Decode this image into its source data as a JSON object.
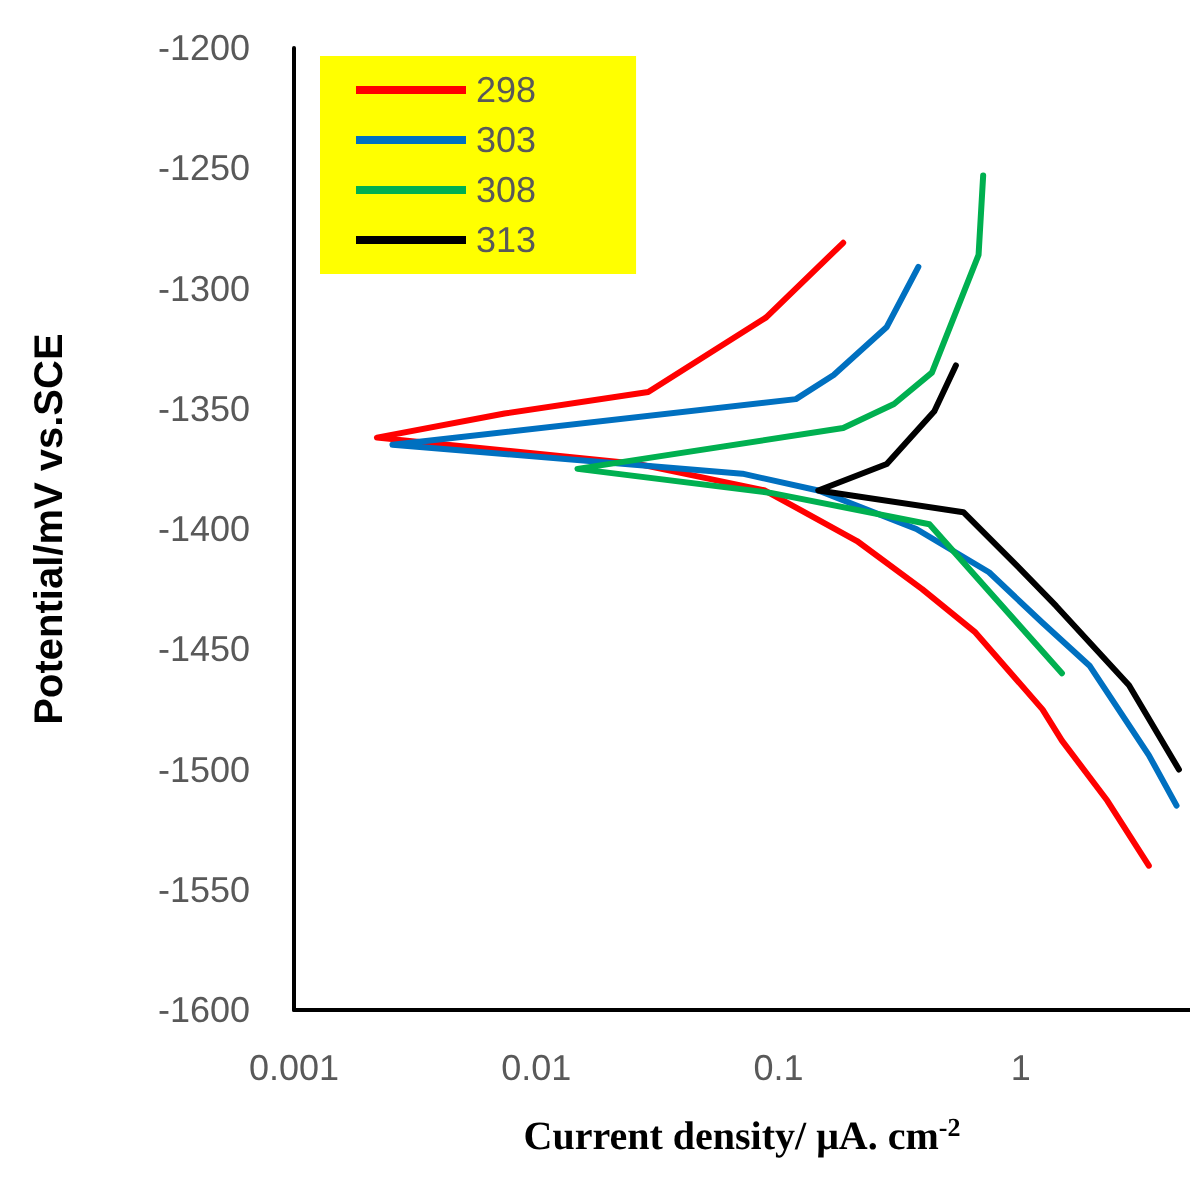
{
  "chart_data": {
    "type": "line",
    "xlabel": "Current density/ μA. cm$^{-2}$",
    "ylabel": "Potential/mV vs.SCE",
    "log": "x",
    "xlim": [
      0.001,
      5
    ],
    "xticks": [
      0.001,
      0.01,
      0.1,
      1
    ],
    "ylim": [
      -1600,
      -1200
    ],
    "yticks": [
      -1600,
      -1550,
      -1500,
      -1450,
      -1400,
      -1350,
      -1300,
      -1250,
      -1200
    ],
    "grid": false,
    "legend": "top left",
    "marker": "none",
    "line_style": "solid",
    "series": [
      {
        "name": "298",
        "color": "#ff0000",
        "x": [
          0.185,
          0.089,
          0.029,
          0.0074,
          0.0022,
          0.0265,
          0.088,
          0.211,
          0.392,
          0.65,
          1.23,
          1.48,
          2.28,
          3.38
        ],
        "values": [
          -1281,
          -1312,
          -1343,
          -1352,
          -1362,
          -1373,
          -1384,
          -1405,
          -1425,
          -1443,
          -1475,
          -1488,
          -1513,
          -1540
        ]
      },
      {
        "name": "303",
        "color": "#0070c0",
        "x": [
          0.378,
          0.28,
          0.169,
          0.118,
          0.00255,
          0.071,
          0.146,
          0.371,
          0.74,
          1.23,
          1.93,
          3.38,
          4.4
        ],
        "values": [
          -1291,
          -1316,
          -1336,
          -1346,
          -1365,
          -1377,
          -1384,
          -1400,
          -1418,
          -1439,
          -1457,
          -1494,
          -1515
        ]
      },
      {
        "name": "308",
        "color": "#00b050",
        "x": [
          0.7,
          0.67,
          0.43,
          0.3,
          0.185,
          0.0148,
          0.093,
          0.42,
          1.48
        ],
        "values": [
          -1253,
          -1286,
          -1335,
          -1348,
          -1358,
          -1375,
          -1385,
          -1398,
          -1460
        ]
      },
      {
        "name": "313",
        "color": "#000000",
        "x": [
          0.54,
          0.44,
          0.28,
          0.146,
          0.58,
          0.96,
          1.4,
          2.8,
          4.5
        ],
        "values": [
          -1332,
          -1351,
          -1373,
          -1384,
          -1393,
          -1415,
          -1432,
          -1465,
          -1500
        ]
      }
    ]
  }
}
